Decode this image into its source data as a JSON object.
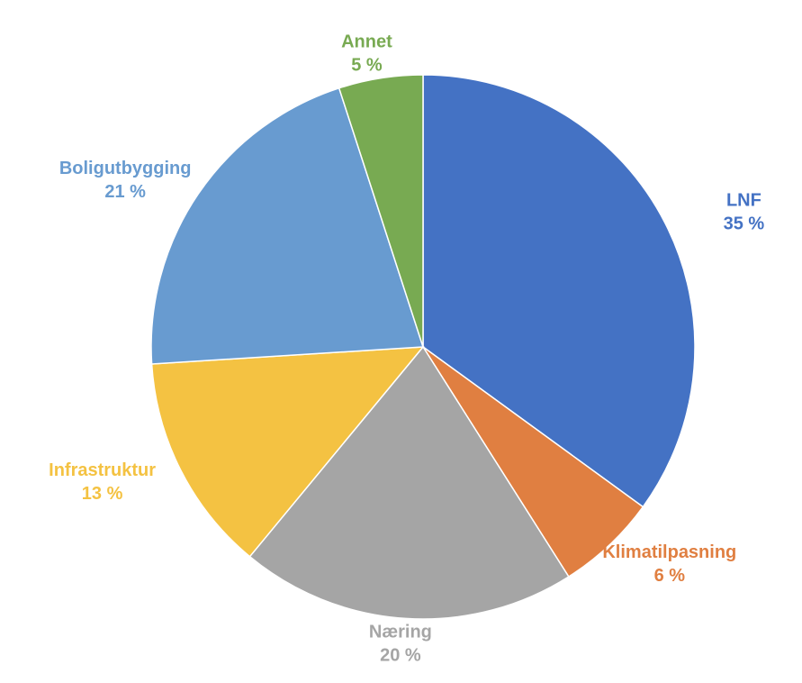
{
  "chart_data": {
    "type": "pie",
    "categories": [
      "LNF",
      "Klimatilpasning",
      "Næring",
      "Infrastruktur",
      "Boligutbygging",
      "Annet"
    ],
    "values": [
      35,
      6,
      20,
      13,
      21,
      5
    ],
    "value_labels": [
      "35 %",
      "6 %",
      "20 %",
      "13 %",
      "21 %",
      "5 %"
    ],
    "colors": [
      "#4472c4",
      "#e07f41",
      "#a5a5a5",
      "#f4c242",
      "#689bd0",
      "#78aa52"
    ]
  }
}
